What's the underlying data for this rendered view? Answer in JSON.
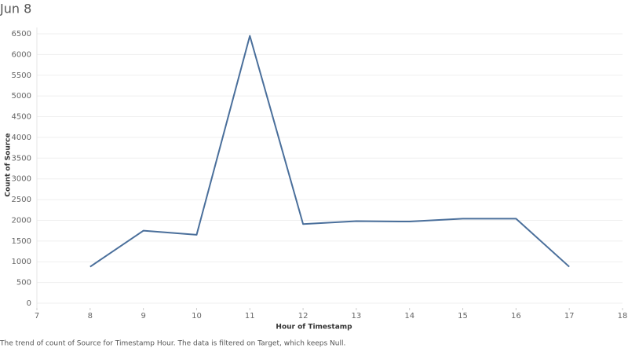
{
  "chart_data": {
    "type": "line",
    "title": "Jun 8",
    "x": [
      8,
      9,
      10,
      11,
      12,
      13,
      14,
      15,
      16,
      17
    ],
    "values": [
      880,
      1750,
      1650,
      6450,
      1910,
      1980,
      1970,
      2040,
      2040,
      880
    ],
    "color": "#4a6f9b",
    "xlim": [
      7,
      18
    ],
    "xticks": [
      7,
      8,
      9,
      10,
      11,
      12,
      13,
      14,
      15,
      16,
      17,
      18
    ],
    "ylim": [
      0,
      6500
    ],
    "yticks": [
      0,
      500,
      1000,
      1500,
      2000,
      2500,
      3000,
      3500,
      4000,
      4500,
      5000,
      5500,
      6000,
      6500
    ],
    "grid": true,
    "xlabel": "Hour of Timestamp",
    "ylabel": "Count of Source",
    "caption": "The trend of count of Source for Timestamp Hour. The data is filtered on Target, which keeps Null."
  }
}
